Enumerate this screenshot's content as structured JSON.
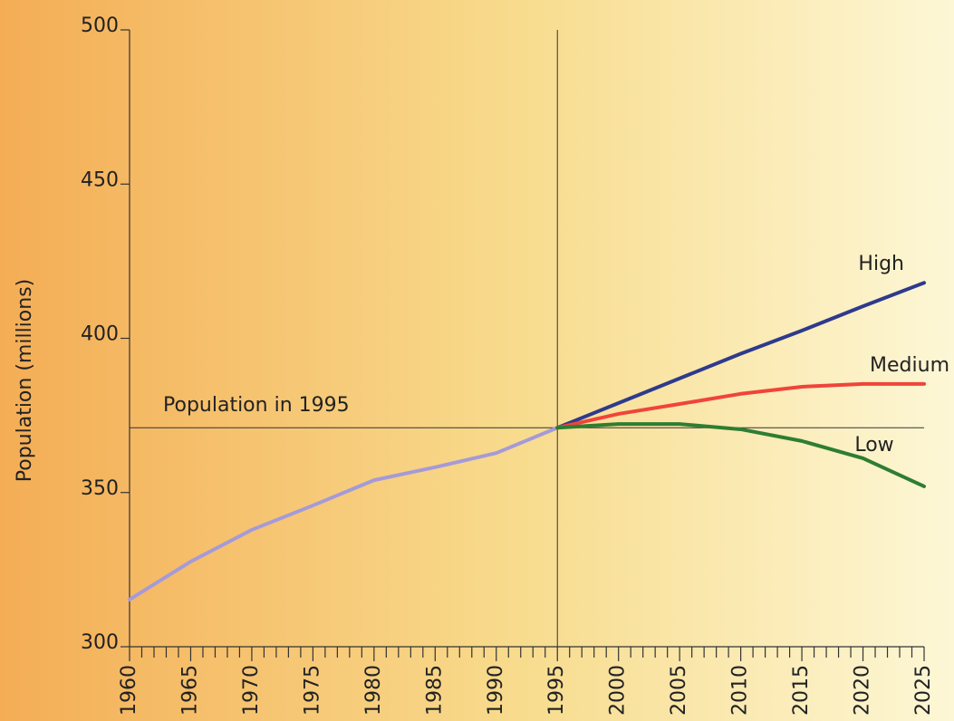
{
  "chart_data": {
    "type": "line",
    "y_label": "Population (millions)",
    "x": [
      1960,
      1965,
      1970,
      1975,
      1980,
      1985,
      1990,
      1995,
      2000,
      2005,
      2010,
      2015,
      2020,
      2025
    ],
    "series": [
      {
        "color": "#a59ad8",
        "values": [
          315.3,
          327.6,
          337.9,
          345.8,
          354,
          358.2,
          362.8,
          371,
          null,
          null,
          null,
          null,
          null,
          null
        ]
      },
      {
        "name": "High",
        "color": "#2e3a8c",
        "values": [
          null,
          null,
          null,
          null,
          null,
          null,
          null,
          371,
          379,
          387,
          395,
          402.5,
          410.4,
          418
        ]
      },
      {
        "name": "Medium",
        "color": "#f0443a",
        "values": [
          null,
          null,
          null,
          null,
          null,
          null,
          null,
          371,
          375.5,
          378.7,
          382,
          384.3,
          385.2,
          385.2
        ]
      },
      {
        "name": "Low",
        "color": "#2e7d32",
        "values": [
          null,
          null,
          null,
          null,
          null,
          null,
          null,
          371,
          372.2,
          372.2,
          370.5,
          366.7,
          361.1,
          352
        ]
      }
    ],
    "annotations": [
      {
        "text": "Population in 1995",
        "y": 371
      }
    ],
    "reference_x": 1995,
    "xlim": [
      1960,
      2025
    ],
    "xticks": [
      1960,
      1965,
      1970,
      1975,
      1980,
      1985,
      1990,
      1995,
      2000,
      2005,
      2010,
      2015,
      2020,
      2025
    ],
    "ylim": [
      300,
      500
    ],
    "yticks": [
      300,
      350,
      400,
      450,
      500
    ]
  }
}
